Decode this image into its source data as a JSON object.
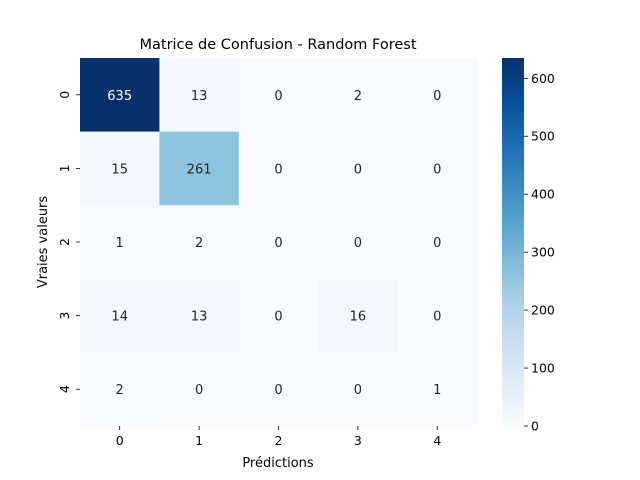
{
  "chart_data": {
    "type": "heatmap",
    "title": "Matrice de Confusion - Random Forest",
    "xlabel": "Prédictions",
    "ylabel": "Vraies valeurs",
    "x_categories": [
      "0",
      "1",
      "2",
      "3",
      "4"
    ],
    "y_categories": [
      "0",
      "1",
      "2",
      "3",
      "4"
    ],
    "values": [
      [
        635,
        13,
        0,
        2,
        0
      ],
      [
        15,
        261,
        0,
        0,
        0
      ],
      [
        1,
        2,
        0,
        0,
        0
      ],
      [
        14,
        13,
        0,
        16,
        0
      ],
      [
        2,
        0,
        0,
        0,
        1
      ]
    ],
    "colormap": "Blues",
    "color_range": [
      0,
      635
    ],
    "colorbar_ticks": [
      "0",
      "100",
      "200",
      "300",
      "400",
      "500",
      "600"
    ],
    "colorbar_tick_values": [
      0,
      100,
      200,
      300,
      400,
      500,
      600
    ],
    "annotated": true,
    "grid": false
  }
}
